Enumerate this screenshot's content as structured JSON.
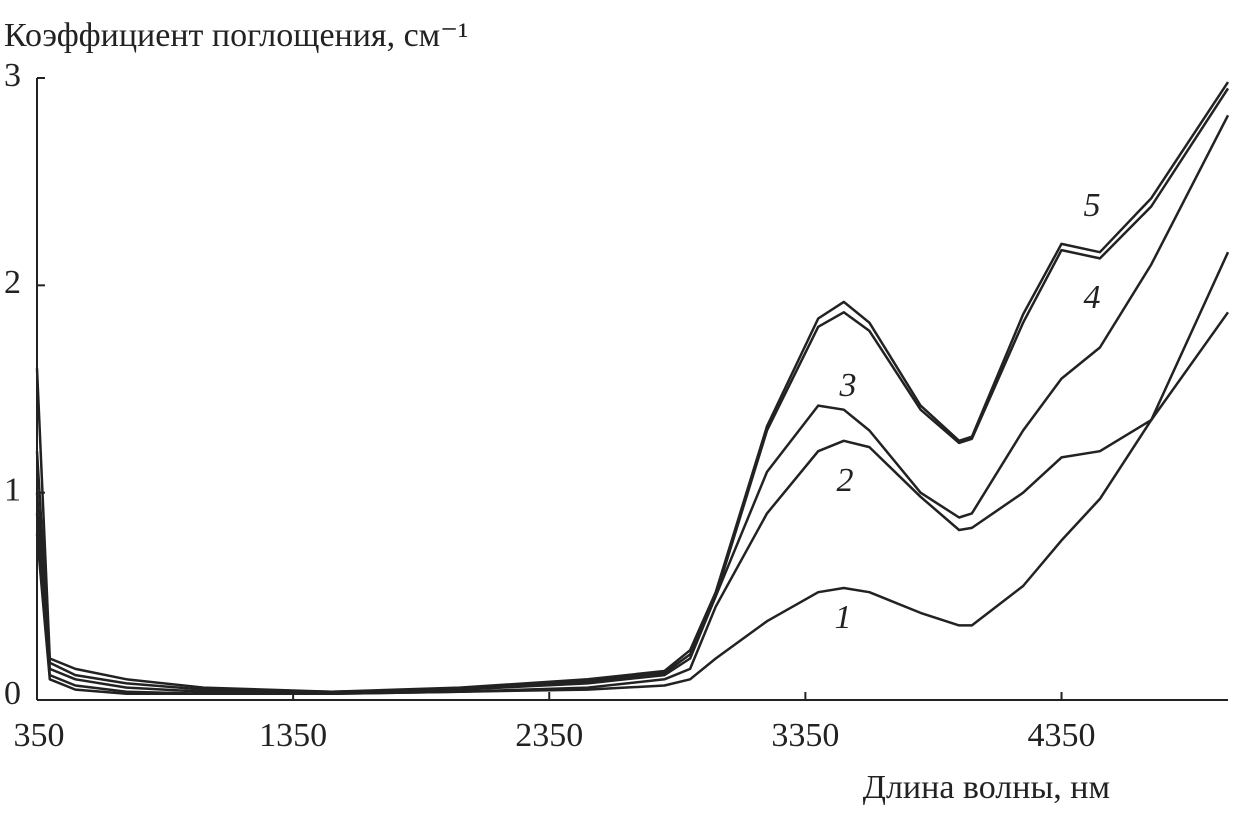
{
  "chart_data": {
    "type": "line",
    "ylabel": "Коэффициент поглощения, см⁻¹",
    "xlabel": "Длина волны, нм",
    "x": [
      350,
      400,
      500,
      700,
      1000,
      1500,
      2000,
      2500,
      2800,
      2900,
      3000,
      3200,
      3400,
      3500,
      3600,
      3800,
      3950,
      4000,
      4200,
      4350,
      4500,
      4700,
      5000
    ],
    "series": [
      {
        "name": "1",
        "color": "#222222",
        "values": [
          0.8,
          0.1,
          0.05,
          0.03,
          0.03,
          0.03,
          0.04,
          0.05,
          0.07,
          0.1,
          0.2,
          0.38,
          0.52,
          0.54,
          0.52,
          0.42,
          0.36,
          0.36,
          0.55,
          0.77,
          0.97,
          1.35,
          2.16
        ]
      },
      {
        "name": "2",
        "color": "#222222",
        "values": [
          0.9,
          0.12,
          0.07,
          0.04,
          0.03,
          0.03,
          0.04,
          0.06,
          0.1,
          0.15,
          0.45,
          0.9,
          1.2,
          1.25,
          1.22,
          0.98,
          0.82,
          0.83,
          1.0,
          1.17,
          1.2,
          1.35,
          1.87
        ]
      },
      {
        "name": "3",
        "color": "#222222",
        "values": [
          1.0,
          0.15,
          0.1,
          0.06,
          0.04,
          0.03,
          0.05,
          0.08,
          0.12,
          0.2,
          0.5,
          1.1,
          1.42,
          1.4,
          1.3,
          1.0,
          0.88,
          0.9,
          1.3,
          1.55,
          1.7,
          2.1,
          2.82
        ]
      },
      {
        "name": "4",
        "color": "#222222",
        "values": [
          1.2,
          0.18,
          0.12,
          0.08,
          0.05,
          0.04,
          0.05,
          0.09,
          0.13,
          0.22,
          0.5,
          1.3,
          1.8,
          1.87,
          1.78,
          1.4,
          1.24,
          1.26,
          1.82,
          2.17,
          2.13,
          2.38,
          2.95
        ]
      },
      {
        "name": "5",
        "color": "#222222",
        "values": [
          1.6,
          0.2,
          0.15,
          0.1,
          0.06,
          0.04,
          0.06,
          0.1,
          0.14,
          0.24,
          0.52,
          1.32,
          1.84,
          1.92,
          1.82,
          1.42,
          1.25,
          1.27,
          1.86,
          2.2,
          2.16,
          2.42,
          2.98
        ]
      }
    ],
    "xlim": [
      350,
      5000
    ],
    "xticks": [
      350,
      1350,
      2350,
      3350,
      4350
    ],
    "ylim": [
      0,
      3
    ],
    "yticks": [
      0,
      1,
      2,
      3
    ]
  }
}
